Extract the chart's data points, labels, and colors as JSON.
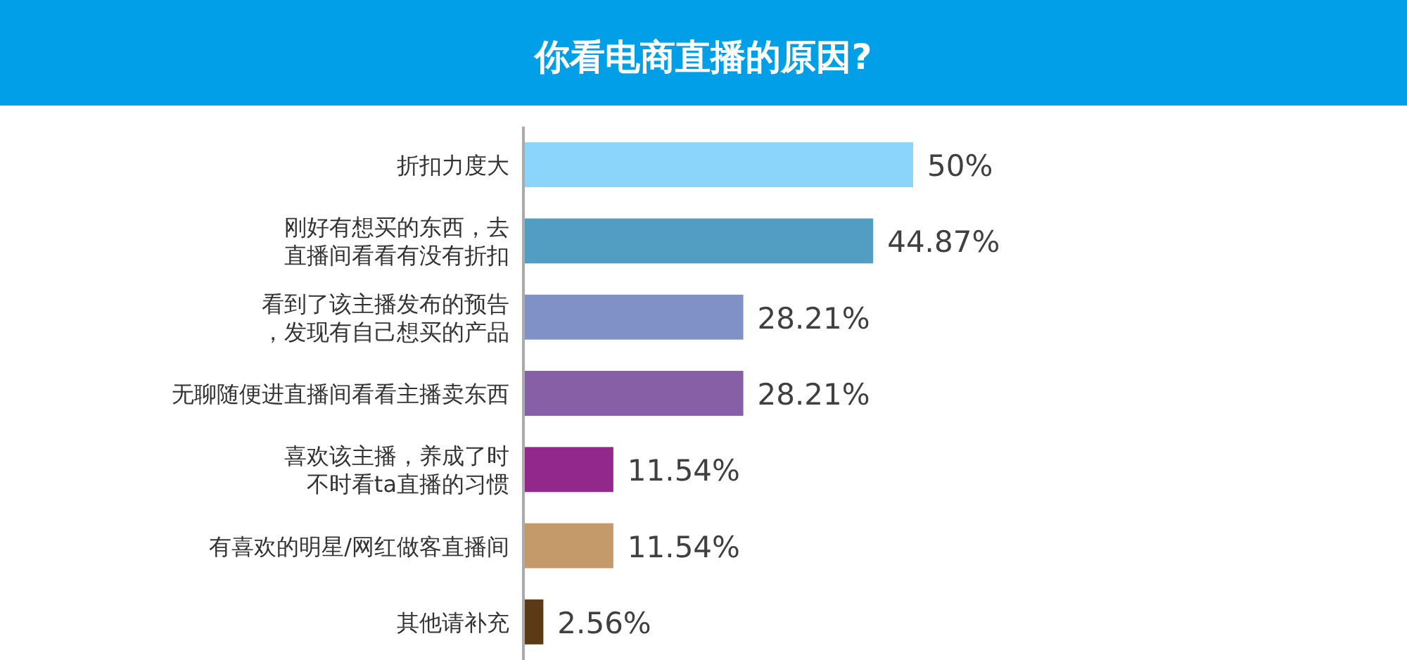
{
  "chart_data": {
    "type": "bar",
    "orientation": "horizontal",
    "title": "你看电商直播的原因?",
    "categories": [
      "折扣力度大",
      "刚好有想买的东西，去直播间看看有没有折扣",
      "看到了该主播发布的预告，发现有自己想买的产品",
      "无聊随便进直播间看看主播卖东西",
      "喜欢该主播，养成了时不时看ta直播的习惯",
      "有喜欢的明星/网红做客直播间",
      "其他请补充"
    ],
    "values": [
      50,
      44.87,
      28.21,
      28.21,
      11.54,
      11.54,
      2.56
    ],
    "colors": [
      "#8ad5f9",
      "#529ec3",
      "#8091c8",
      "#865fa6",
      "#93288c",
      "#c49a6a",
      "#5c3a16"
    ],
    "value_labels": [
      "50%",
      "44.87%",
      "28.21%",
      "28.21%",
      "11.54%",
      "11.54%",
      "2.56%"
    ]
  }
}
